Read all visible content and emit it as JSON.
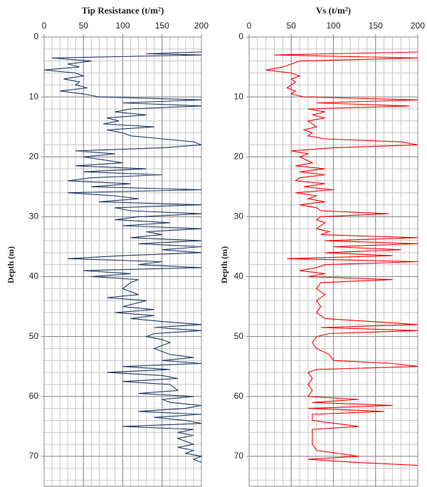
{
  "chart_data": [
    {
      "type": "line",
      "title": "Tip Resistance (t/m²)",
      "ylabel": "Depth (m)",
      "color": "#1f3864",
      "xlim": [
        0,
        200
      ],
      "xticks": [
        0,
        50,
        100,
        150,
        200
      ],
      "ylim": [
        0,
        75
      ],
      "yticks": [
        0,
        10,
        20,
        30,
        40,
        50,
        60,
        70
      ],
      "y_inverted": true,
      "grid": true,
      "xgrid_step": 10,
      "ygrid_step": 2,
      "y": [
        2.5,
        2.8,
        3,
        3.5,
        4,
        4.5,
        5,
        5.5,
        6,
        6.5,
        7,
        7.5,
        8,
        8.5,
        9,
        9.5,
        10,
        10.5,
        11,
        11.5,
        12,
        12.5,
        13,
        13.5,
        14,
        14.5,
        15,
        15.5,
        16,
        16.5,
        17,
        17.5,
        18,
        18.5,
        19,
        19.5,
        20,
        21,
        21.5,
        22,
        22.5,
        23,
        23.5,
        24,
        24.5,
        25,
        25.5,
        26,
        26.5,
        27,
        27.5,
        28,
        28.5,
        29,
        29.5,
        30,
        30.5,
        31,
        31.5,
        32,
        32.5,
        33,
        33.5,
        34,
        34.5,
        35,
        35.5,
        36,
        36.5,
        37,
        37.5,
        38,
        38.5,
        39,
        39.5,
        40,
        40.5,
        41,
        42,
        43,
        43.5,
        44,
        45,
        45.5,
        46,
        46.5,
        47,
        47.5,
        48,
        48.5,
        49,
        49.5,
        50,
        50.5,
        51,
        52,
        53,
        53.5,
        54,
        54.5,
        55,
        55.5,
        56,
        56.5,
        57,
        57.5,
        58,
        59,
        59.5,
        60,
        60.5,
        61,
        61.5,
        62,
        62.5,
        63,
        63.5,
        64,
        64.5,
        65,
        65.5,
        66,
        66.5,
        67,
        68,
        68.5,
        69,
        69.5,
        70,
        70.5,
        71
      ],
      "x": [
        200,
        130,
        200,
        10,
        60,
        30,
        45,
        0,
        40,
        50,
        25,
        45,
        40,
        55,
        20,
        50,
        70,
        200,
        100,
        200,
        110,
        90,
        130,
        80,
        95,
        75,
        140,
        80,
        100,
        110,
        150,
        190,
        200,
        150,
        40,
        90,
        50,
        100,
        40,
        130,
        50,
        150,
        60,
        30,
        110,
        60,
        200,
        30,
        90,
        120,
        70,
        200,
        90,
        110,
        200,
        120,
        90,
        160,
        100,
        200,
        130,
        150,
        110,
        200,
        120,
        200,
        150,
        200,
        100,
        30,
        150,
        120,
        200,
        50,
        110,
        60,
        120,
        110,
        100,
        120,
        80,
        130,
        100,
        140,
        90,
        140,
        110,
        150,
        200,
        140,
        200,
        140,
        130,
        150,
        160,
        140,
        160,
        190,
        150,
        200,
        100,
        160,
        80,
        150,
        170,
        100,
        160,
        170,
        120,
        190,
        150,
        160,
        200,
        180,
        120,
        200,
        140,
        180,
        200,
        100,
        190,
        170,
        190,
        170,
        190,
        170,
        190,
        180,
        200,
        190,
        200
      ]
    },
    {
      "type": "line",
      "title": "Vs (t/m²)",
      "ylabel": "Depth (m)",
      "color": "#ff0000",
      "xlim": [
        0,
        200
      ],
      "xticks": [
        0,
        50,
        100,
        150,
        200
      ],
      "ylim": [
        0,
        75
      ],
      "yticks": [
        0,
        10,
        20,
        30,
        40,
        50,
        60,
        70
      ],
      "y_inverted": true,
      "grid": true,
      "xgrid_step": 10,
      "ygrid_step": 2,
      "y": [
        2.5,
        3,
        3.5,
        4,
        4.5,
        5,
        5.5,
        6,
        6.5,
        7,
        7.5,
        8,
        8.5,
        9,
        9.5,
        10,
        10.5,
        11,
        11.5,
        12,
        12.5,
        13,
        13.5,
        14,
        15,
        15.5,
        16,
        16.5,
        17,
        17.5,
        18,
        18.5,
        19,
        19.5,
        20,
        21,
        21.5,
        22,
        22.5,
        23,
        23.5,
        24,
        24.5,
        25,
        25.5,
        26,
        26.5,
        27,
        27.5,
        28,
        28.5,
        29,
        29.5,
        30,
        30.5,
        31,
        32,
        32.5,
        33,
        33.5,
        34,
        34.5,
        35,
        35.5,
        36,
        36.5,
        37,
        37.5,
        38,
        38.5,
        39,
        39.5,
        40,
        40.5,
        41,
        42,
        43,
        44,
        45,
        46,
        47,
        48,
        48.5,
        49,
        49.5,
        50,
        51,
        52,
        53,
        54,
        54.5,
        55,
        55.5,
        56,
        57,
        58,
        59,
        60,
        60.5,
        61,
        61.5,
        62,
        62.5,
        63,
        64,
        65,
        65.5,
        66,
        68,
        69,
        70,
        70.5,
        71,
        71.5
      ],
      "x": [
        200,
        30,
        200,
        60,
        50,
        40,
        20,
        50,
        60,
        50,
        55,
        50,
        45,
        55,
        50,
        65,
        200,
        80,
        190,
        70,
        90,
        75,
        90,
        70,
        80,
        65,
        75,
        70,
        90,
        180,
        200,
        100,
        50,
        70,
        60,
        75,
        55,
        90,
        60,
        90,
        60,
        55,
        90,
        65,
        100,
        55,
        80,
        70,
        90,
        60,
        80,
        85,
        165,
        85,
        80,
        90,
        80,
        95,
        85,
        200,
        90,
        200,
        100,
        180,
        90,
        170,
        45,
        200,
        90,
        80,
        60,
        90,
        70,
        170,
        85,
        80,
        90,
        80,
        85,
        80,
        90,
        200,
        85,
        200,
        95,
        80,
        75,
        80,
        95,
        100,
        170,
        200,
        80,
        70,
        75,
        70,
        75,
        70,
        130,
        75,
        170,
        70,
        160,
        75,
        75,
        130,
        75,
        75,
        75,
        80,
        130,
        70,
        125,
        200
      ]
    }
  ]
}
